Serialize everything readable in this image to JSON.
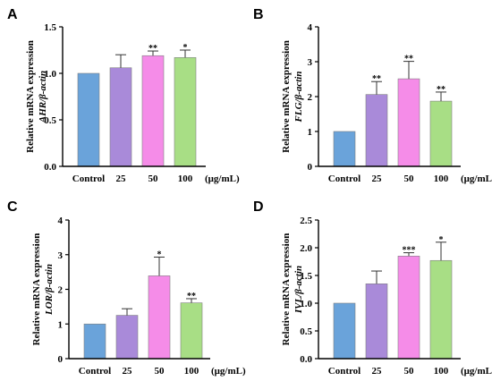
{
  "chart_data": [
    {
      "type": "bar",
      "panel_label": "A",
      "ylabel_line1": "Relative mRNA expression",
      "ylabel_line2": "AHR/β-actin",
      "categories": [
        "Control",
        "25",
        "50",
        "100"
      ],
      "unit_label": "(μg/mL)",
      "values": [
        1.0,
        1.06,
        1.19,
        1.17
      ],
      "errors": [
        0.0,
        0.14,
        0.05,
        0.08
      ],
      "significance": [
        "",
        "",
        "**",
        "*"
      ],
      "ylim": [
        0,
        1.5
      ],
      "yticks": [
        "0.0",
        "0.5",
        "1.0",
        "1.5"
      ],
      "ytick_values": [
        0,
        0.5,
        1.0,
        1.5
      ]
    },
    {
      "type": "bar",
      "panel_label": "B",
      "ylabel_line1": "Relative mRNA expression",
      "ylabel_line2": "FLG/β-actin",
      "categories": [
        "Control",
        "25",
        "50",
        "100"
      ],
      "unit_label": "(μg/mL)",
      "values": [
        1.0,
        2.06,
        2.51,
        1.87
      ],
      "errors": [
        0.0,
        0.37,
        0.5,
        0.26
      ],
      "significance": [
        "",
        "**",
        "**",
        "**"
      ],
      "ylim": [
        0,
        4
      ],
      "yticks": [
        "0",
        "1",
        "2",
        "3",
        "4"
      ],
      "ytick_values": [
        0,
        1,
        2,
        3,
        4
      ]
    },
    {
      "type": "bar",
      "panel_label": "C",
      "ylabel_line1": "Relative mRNA expression",
      "ylabel_line2": "LOR/β-actin",
      "categories": [
        "Control",
        "25",
        "50",
        "100"
      ],
      "unit_label": "(μg/mL)",
      "values": [
        1.0,
        1.25,
        2.39,
        1.61
      ],
      "errors": [
        0.0,
        0.19,
        0.54,
        0.12
      ],
      "significance": [
        "",
        "",
        "*",
        "**"
      ],
      "ylim": [
        0,
        4
      ],
      "yticks": [
        "0",
        "1",
        "2",
        "3",
        "4"
      ],
      "ytick_values": [
        0,
        1,
        2,
        3,
        4
      ]
    },
    {
      "type": "bar",
      "panel_label": "D",
      "ylabel_line1": "Relative mRNA expression",
      "ylabel_line2": "IVL/β-actin",
      "categories": [
        "Control",
        "25",
        "50",
        "100"
      ],
      "unit_label": "(μg/mL)",
      "values": [
        1.0,
        1.35,
        1.85,
        1.77
      ],
      "errors": [
        0.0,
        0.23,
        0.06,
        0.33
      ],
      "significance": [
        "",
        "",
        "***",
        "*"
      ],
      "ylim": [
        0,
        2.5
      ],
      "yticks": [
        "0.0",
        "0.5",
        "1.0",
        "1.5",
        "2.0",
        "2.5"
      ],
      "ytick_values": [
        0,
        0.5,
        1.0,
        1.5,
        2.0,
        2.5
      ]
    }
  ],
  "colors": {
    "bars": [
      "#6aa3da",
      "#a98ad9",
      "#f58ce8",
      "#a8de85"
    ],
    "edge": "#808080",
    "axis": "#000000"
  }
}
